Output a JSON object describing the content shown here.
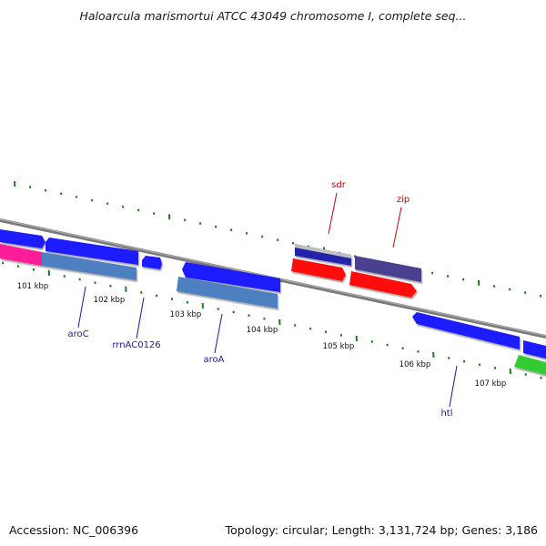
{
  "title": "Haloarcula marismortui ATCC 43049 chromosome I, complete seq...",
  "accession": "Accession: NC_006396",
  "topology": "Topology: circular; Length: 3,131,724 bp; Genes: 3,186",
  "colors": {
    "backbone": "#808080",
    "ticks": "#1f7a1f",
    "gene_blue": "#1a1aff",
    "gene_steel": "#4d80c0",
    "gene_pink": "#ff1a99",
    "gene_red": "#ff1010",
    "gene_purple": "#4a3f8f",
    "gene_green": "#33cc33",
    "label_blue": "#1a1a99",
    "label_red": "#cc0000"
  },
  "scale_labels": [
    "101 kbp",
    "102 kbp",
    "103 kbp",
    "104 kbp",
    "105 kbp",
    "106 kbp",
    "107 kbp"
  ],
  "gene_labels": [
    {
      "name": "aroC",
      "color": "label_blue"
    },
    {
      "name": "rrnAC0126",
      "color": "label_blue"
    },
    {
      "name": "aroA",
      "color": "label_blue"
    },
    {
      "name": "htl",
      "color": "label_blue"
    },
    {
      "name": "sdr",
      "color": "label_red"
    },
    {
      "name": "zip",
      "color": "label_red"
    }
  ]
}
